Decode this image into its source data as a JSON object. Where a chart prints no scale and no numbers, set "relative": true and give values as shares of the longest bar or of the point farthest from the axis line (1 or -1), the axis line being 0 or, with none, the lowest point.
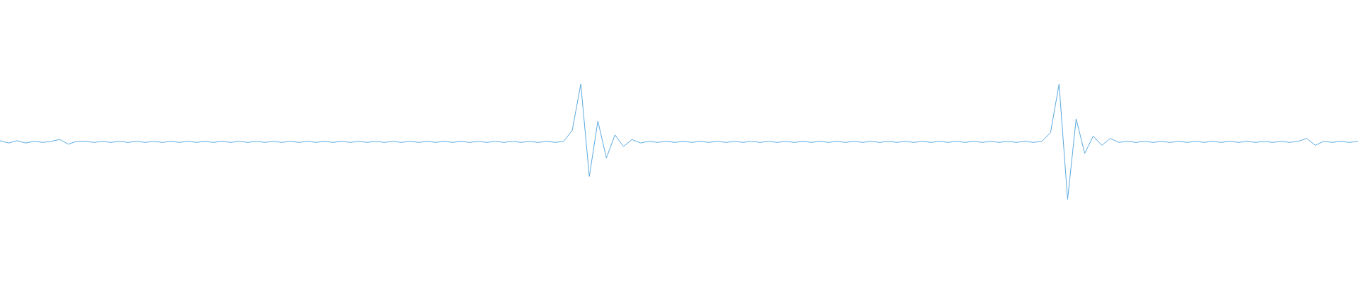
{
  "chart_data": {
    "type": "line",
    "relative": true,
    "categories": [
      null,
      null,
      null,
      null,
      null,
      null,
      null,
      null,
      null,
      null,
      null,
      null,
      null,
      null,
      null,
      null,
      null,
      null,
      null,
      null,
      null,
      null,
      null,
      null,
      null,
      null,
      null,
      null,
      null,
      null,
      null,
      null,
      null,
      null,
      null,
      null,
      null,
      null,
      null,
      null,
      null,
      null,
      null,
      null,
      null,
      null,
      null,
      null,
      null,
      null,
      null,
      null,
      null,
      null,
      null,
      null,
      null,
      null,
      null,
      null,
      null,
      null,
      null,
      null,
      null,
      null,
      null,
      null,
      null,
      null,
      null,
      null,
      null,
      null,
      null,
      null,
      null,
      null,
      null,
      null,
      null,
      null,
      null,
      null,
      null,
      null,
      null,
      null,
      null,
      null,
      null,
      null,
      null,
      null,
      null,
      null,
      null,
      null,
      null,
      null,
      null,
      null,
      null,
      null,
      null,
      null,
      null,
      null,
      null,
      null,
      null,
      null,
      null,
      null,
      null,
      null,
      null,
      null,
      null,
      null,
      null,
      null,
      null,
      null,
      null,
      null,
      null,
      null,
      null,
      null,
      null,
      null,
      null,
      null,
      null,
      null,
      null,
      null,
      null,
      null,
      null,
      null,
      null,
      null,
      null,
      null,
      null,
      null,
      null,
      null,
      null,
      null,
      null,
      null,
      null,
      null,
      null,
      null,
      null,
      null
    ],
    "series": [
      {
        "color": "#5aa9e0",
        "values": [
          0.51,
          0.49,
          0.51,
          0.49,
          0.505,
          0.495,
          0.505,
          0.52,
          0.48,
          0.505,
          0.505,
          0.495,
          0.505,
          0.495,
          0.505,
          0.495,
          0.505,
          0.495,
          0.505,
          0.495,
          0.505,
          0.495,
          0.505,
          0.495,
          0.505,
          0.495,
          0.505,
          0.495,
          0.505,
          0.495,
          0.505,
          0.495,
          0.505,
          0.495,
          0.505,
          0.495,
          0.505,
          0.495,
          0.505,
          0.495,
          0.505,
          0.495,
          0.505,
          0.495,
          0.505,
          0.495,
          0.505,
          0.495,
          0.505,
          0.495,
          0.505,
          0.495,
          0.505,
          0.495,
          0.505,
          0.495,
          0.505,
          0.495,
          0.505,
          0.495,
          0.505,
          0.495,
          0.505,
          0.495,
          0.505,
          0.495,
          0.505,
          0.6,
          1,
          0.2,
          0.68,
          0.36,
          0.56,
          0.46,
          0.52,
          0.49,
          0.505,
          0.495,
          0.505,
          0.495,
          0.505,
          0.495,
          0.505,
          0.495,
          0.505,
          0.495,
          0.505,
          0.495,
          0.505,
          0.495,
          0.505,
          0.495,
          0.505,
          0.495,
          0.505,
          0.495,
          0.505,
          0.495,
          0.505,
          0.495,
          0.505,
          0.495,
          0.505,
          0.495,
          0.505,
          0.495,
          0.505,
          0.495,
          0.505,
          0.495,
          0.505,
          0.495,
          0.505,
          0.495,
          0.505,
          0.495,
          0.505,
          0.495,
          0.505,
          0.495,
          0.505,
          0.495,
          0.505,
          0.58,
          1,
          0,
          0.7,
          0.4,
          0.55,
          0.47,
          0.53,
          0.495,
          0.505,
          0.495,
          0.505,
          0.495,
          0.505,
          0.495,
          0.505,
          0.495,
          0.505,
          0.495,
          0.505,
          0.495,
          0.505,
          0.495,
          0.505,
          0.495,
          0.505,
          0.495,
          0.505,
          0.495,
          0.505,
          0.53,
          0.47,
          0.505,
          0.495,
          0.505,
          0.495,
          0.505
        ]
      }
    ]
  }
}
